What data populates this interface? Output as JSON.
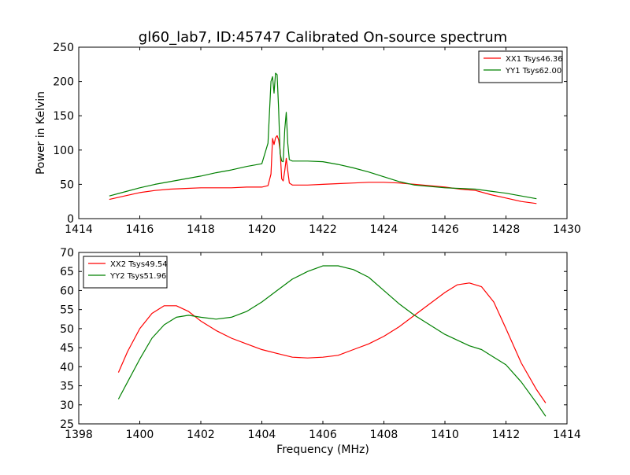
{
  "figure_title": "gl60_lab7, ID:45747 Calibrated On-source spectrum",
  "chart_data": [
    {
      "type": "line",
      "title": "",
      "xlabel": "",
      "ylabel": "Power in Kelvin",
      "xlim": [
        1414,
        1430
      ],
      "ylim": [
        0,
        250
      ],
      "xticks": [
        1414,
        1416,
        1418,
        1420,
        1422,
        1424,
        1426,
        1428,
        1430
      ],
      "yticks": [
        0,
        50,
        100,
        150,
        200,
        250
      ],
      "grid": false,
      "legend_position": "top-right",
      "series": [
        {
          "name": "XX1 Tsys46.36",
          "color": "#ff0000",
          "x": [
            1415.0,
            1415.5,
            1416.0,
            1416.5,
            1417.0,
            1417.5,
            1418.0,
            1418.5,
            1419.0,
            1419.5,
            1420.0,
            1420.2,
            1420.3,
            1420.35,
            1420.4,
            1420.45,
            1420.5,
            1420.55,
            1420.6,
            1420.65,
            1420.7,
            1420.75,
            1420.8,
            1420.85,
            1420.9,
            1421.0,
            1421.5,
            1422.0,
            1422.5,
            1423.0,
            1423.5,
            1424.0,
            1424.5,
            1425.0,
            1425.5,
            1426.0,
            1426.5,
            1427.0,
            1427.5,
            1428.0,
            1428.5,
            1429.0
          ],
          "values": [
            28,
            33,
            38,
            41,
            43,
            44,
            45,
            45,
            45,
            46,
            46,
            48,
            65,
            117,
            108,
            118,
            121,
            115,
            100,
            58,
            55,
            70,
            88,
            70,
            52,
            49,
            49,
            50,
            51,
            52,
            53,
            53,
            52,
            50,
            48,
            46,
            43,
            41,
            35,
            30,
            25,
            22
          ]
        },
        {
          "name": "YY1 Tsys62.00",
          "color": "#008000",
          "x": [
            1415.0,
            1415.5,
            1416.0,
            1416.5,
            1417.0,
            1417.5,
            1418.0,
            1418.5,
            1419.0,
            1419.5,
            1420.0,
            1420.2,
            1420.3,
            1420.35,
            1420.4,
            1420.45,
            1420.5,
            1420.55,
            1420.6,
            1420.65,
            1420.7,
            1420.75,
            1420.8,
            1420.85,
            1420.9,
            1421.0,
            1421.5,
            1422.0,
            1422.5,
            1423.0,
            1423.5,
            1424.0,
            1424.5,
            1425.0,
            1425.5,
            1426.0,
            1426.5,
            1427.0,
            1427.5,
            1428.0,
            1428.5,
            1429.0
          ],
          "values": [
            33,
            39,
            45,
            50,
            54,
            58,
            62,
            67,
            71,
            76,
            80,
            110,
            200,
            207,
            183,
            212,
            210,
            160,
            95,
            84,
            83,
            130,
            155,
            110,
            86,
            84,
            84,
            83,
            79,
            74,
            68,
            61,
            54,
            49,
            47,
            45,
            44,
            43,
            40,
            37,
            33,
            29
          ]
        }
      ]
    },
    {
      "type": "line",
      "title": "",
      "xlabel": "Frequency (MHz)",
      "ylabel": "",
      "xlim": [
        1398,
        1414
      ],
      "ylim": [
        25,
        70
      ],
      "xticks": [
        1398,
        1400,
        1402,
        1404,
        1406,
        1408,
        1410,
        1412,
        1414
      ],
      "yticks": [
        25,
        30,
        35,
        40,
        45,
        50,
        55,
        60,
        65,
        70
      ],
      "grid": false,
      "legend_position": "top-left",
      "series": [
        {
          "name": "XX2 Tsys49.54",
          "color": "#ff0000",
          "x": [
            1399.3,
            1399.6,
            1400.0,
            1400.4,
            1400.8,
            1401.2,
            1401.6,
            1402.0,
            1402.5,
            1403.0,
            1403.5,
            1404.0,
            1404.5,
            1405.0,
            1405.5,
            1406.0,
            1406.5,
            1407.0,
            1407.5,
            1408.0,
            1408.5,
            1409.0,
            1409.5,
            1410.0,
            1410.4,
            1410.8,
            1411.2,
            1411.6,
            1412.0,
            1412.5,
            1413.0,
            1413.3
          ],
          "values": [
            38.5,
            44,
            50,
            54,
            56,
            56,
            54.5,
            52,
            49.5,
            47.5,
            46,
            44.5,
            43.5,
            42.5,
            42.3,
            42.5,
            43,
            44.5,
            46,
            48,
            50.5,
            53.5,
            56.5,
            59.5,
            61.5,
            62,
            61,
            57,
            50,
            41,
            34,
            30.5
          ]
        },
        {
          "name": "YY2 Tsys51.96",
          "color": "#008000",
          "x": [
            1399.3,
            1399.6,
            1400.0,
            1400.4,
            1400.8,
            1401.2,
            1401.6,
            1402.0,
            1402.5,
            1403.0,
            1403.5,
            1404.0,
            1404.5,
            1405.0,
            1405.5,
            1406.0,
            1406.5,
            1407.0,
            1407.5,
            1408.0,
            1408.5,
            1409.0,
            1409.5,
            1410.0,
            1410.4,
            1410.8,
            1411.2,
            1411.6,
            1412.0,
            1412.5,
            1413.0,
            1413.3
          ],
          "values": [
            31.5,
            36,
            42,
            47.5,
            51,
            53,
            53.5,
            53,
            52.5,
            53,
            54.5,
            57,
            60,
            63,
            65,
            66.5,
            66.5,
            65.5,
            63.5,
            60,
            56.5,
            53.5,
            51,
            48.5,
            47,
            45.5,
            44.5,
            42.5,
            40.5,
            36,
            30.5,
            27
          ]
        }
      ]
    }
  ]
}
